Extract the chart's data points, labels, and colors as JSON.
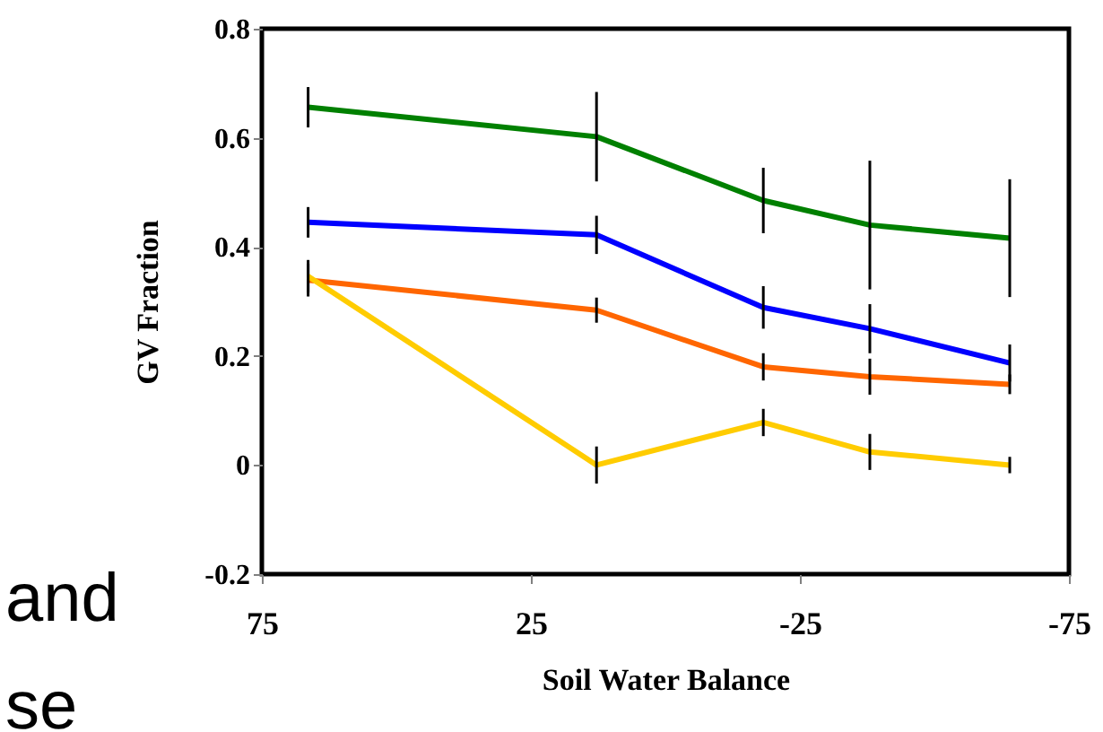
{
  "chart_data": {
    "type": "line",
    "xlabel": "Soil Water Balance",
    "ylabel": "GV Fraction",
    "x": [
      66.4,
      12.8,
      -18.2,
      -38,
      -64
    ],
    "series": [
      {
        "color": "#008000",
        "values": [
          0.656,
          0.602,
          0.485,
          0.44,
          0.416
        ],
        "errors": [
          0.037,
          0.082,
          0.06,
          0.118,
          0.108
        ]
      },
      {
        "color": "#0000ff",
        "values": [
          0.445,
          0.422,
          0.289,
          0.25,
          0.187
        ],
        "errors": [
          0.028,
          0.035,
          0.039,
          0.045,
          0.034
        ]
      },
      {
        "color": "#ff6600",
        "values": [
          0.339,
          0.284,
          0.18,
          0.162,
          0.148
        ],
        "errors": [
          0.03,
          0.023,
          0.025,
          0.033,
          0.018
        ]
      },
      {
        "color": "#ffcc00",
        "values": [
          0.346,
          0,
          0.078,
          0.024,
          0
        ],
        "errors": [
          0.03,
          0.034,
          0.025,
          0.033,
          0.015
        ]
      }
    ],
    "xlim": [
      75,
      -75
    ],
    "xticks": [
      75,
      25,
      -25,
      -75
    ],
    "ylim": [
      -0.2,
      0.8
    ],
    "yticks": [
      -0.2,
      0,
      0.2,
      0.4,
      0.6,
      0.8
    ],
    "grid": false,
    "marker": "none",
    "line_style": "solid",
    "annotations": [
      "and",
      "se"
    ]
  }
}
